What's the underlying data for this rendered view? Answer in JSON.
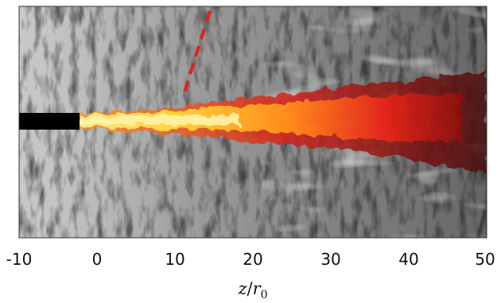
{
  "figure": {
    "description_colors": {
      "background": "#ffffff",
      "field_dark": "#1a1a1a",
      "field_light": "#e6e6e6",
      "nozzle": "#000000",
      "flame_core": "#ffe14a",
      "flame_mid": "#ff8a1a",
      "flame_outer": "#e3261a",
      "flame_edge": "#5a0a0a",
      "dashed_line": "#e02020"
    },
    "x_axis": {
      "ticks": [
        "-10",
        "0",
        "10",
        "20",
        "30",
        "40",
        "50"
      ],
      "label_var": "z",
      "label_slash": "/",
      "label_denom": "r",
      "label_sub": "0"
    }
  }
}
